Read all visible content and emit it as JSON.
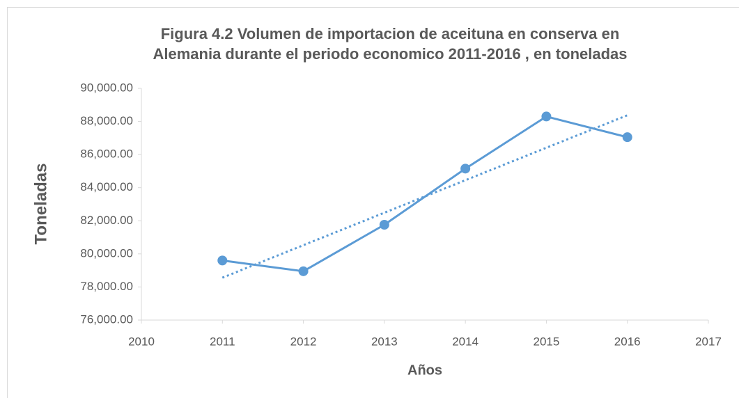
{
  "chart_data": {
    "type": "line",
    "title": [
      "Figura 4.2 Volumen de importacion de aceituna en conserva en",
      "Alemania durante el periodo economico 2011-2016 , en toneladas"
    ],
    "xlabel": "Años",
    "ylabel": "Toneladas",
    "x": [
      2011,
      2012,
      2013,
      2014,
      2015,
      2016
    ],
    "series": [
      {
        "name": "Toneladas",
        "color": "#5b9bd5",
        "values": [
          79600,
          78950,
          81760,
          85150,
          88300,
          87050
        ]
      }
    ],
    "trendline": "linear",
    "xlim": [
      2010,
      2017
    ],
    "xticks": [
      2010,
      2011,
      2012,
      2013,
      2014,
      2015,
      2016,
      2017
    ],
    "ylim": [
      76000,
      90000
    ],
    "yticks": [
      {
        "value": 76000,
        "label": "76,000.00"
      },
      {
        "value": 78000,
        "label": "78,000.00"
      },
      {
        "value": 80000,
        "label": "80,000.00"
      },
      {
        "value": 82000,
        "label": "82,000.00"
      },
      {
        "value": 84000,
        "label": "84,000.00"
      },
      {
        "value": 86000,
        "label": "86,000.00"
      },
      {
        "value": 88000,
        "label": "88,000.00"
      },
      {
        "value": 90000,
        "label": "90,000.00"
      }
    ],
    "grid": false
  }
}
